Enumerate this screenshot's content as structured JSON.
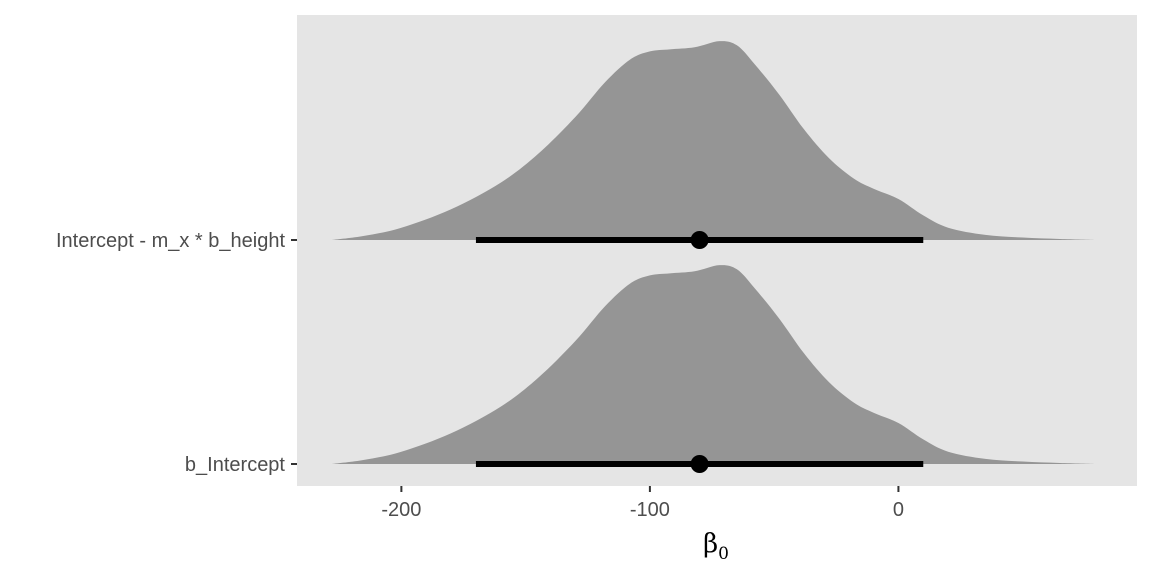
{
  "chart_data": {
    "type": "halfeye",
    "title": "",
    "xlabel": "β",
    "xlabel_subscript": "0",
    "ylabel": "",
    "xlim": [
      -242,
      96
    ],
    "xticks": [
      -200,
      -100,
      0
    ],
    "xtick_labels": [
      "-200",
      "-100",
      "0"
    ],
    "grid": false,
    "legend": "none",
    "categories": [
      "Intercept - m_x * b_height",
      "b_Intercept"
    ],
    "series": [
      {
        "category": "Intercept - m_x * b_height",
        "point_estimate": -80,
        "interval": [
          -170,
          10
        ],
        "density": {
          "x": [
            -228,
            -215,
            -200,
            -180,
            -160,
            -145,
            -130,
            -118,
            -108,
            -100,
            -92,
            -82,
            -72,
            -65,
            -58,
            -48,
            -38,
            -28,
            -18,
            -10,
            0,
            10,
            20,
            35,
            50,
            65,
            80
          ],
          "y": [
            0.0,
            0.02,
            0.06,
            0.15,
            0.28,
            0.42,
            0.6,
            0.77,
            0.88,
            0.92,
            0.93,
            0.94,
            0.97,
            0.95,
            0.86,
            0.71,
            0.54,
            0.4,
            0.3,
            0.25,
            0.2,
            0.12,
            0.06,
            0.025,
            0.012,
            0.005,
            0.0
          ]
        }
      },
      {
        "category": "b_Intercept",
        "point_estimate": -80,
        "interval": [
          -170,
          10
        ],
        "density": {
          "x": [
            -228,
            -215,
            -200,
            -180,
            -160,
            -145,
            -130,
            -118,
            -108,
            -100,
            -92,
            -82,
            -72,
            -65,
            -58,
            -48,
            -38,
            -28,
            -18,
            -10,
            0,
            10,
            20,
            35,
            50,
            65,
            80
          ],
          "y": [
            0.0,
            0.02,
            0.06,
            0.15,
            0.28,
            0.42,
            0.6,
            0.77,
            0.88,
            0.92,
            0.93,
            0.94,
            0.97,
            0.95,
            0.86,
            0.71,
            0.54,
            0.4,
            0.3,
            0.25,
            0.2,
            0.12,
            0.06,
            0.025,
            0.012,
            0.005,
            0.0
          ]
        }
      }
    ],
    "colors": {
      "panel_bg": "#e5e5e5",
      "density_fill": "#959595",
      "interval": "#000000",
      "tick": "#333333",
      "tick_label": "#4d4d4d"
    }
  }
}
